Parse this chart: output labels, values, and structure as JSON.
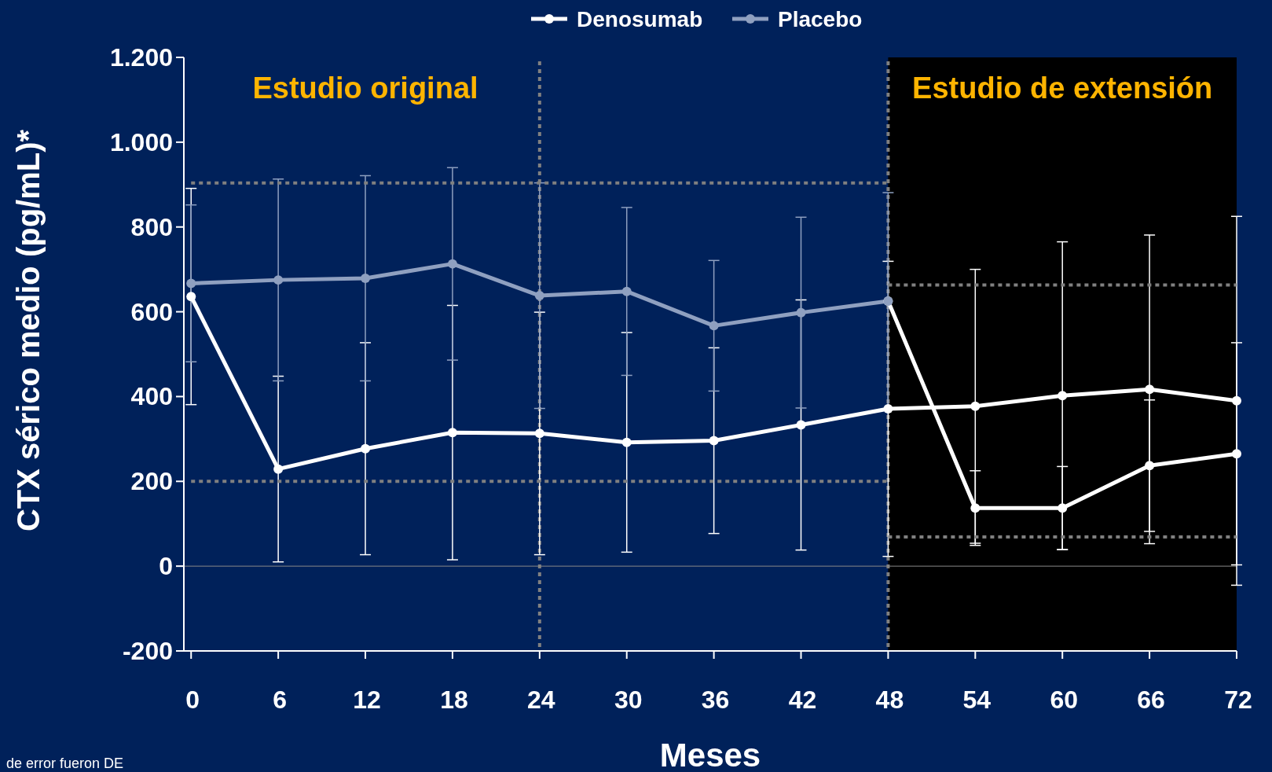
{
  "chart_data": {
    "type": "line",
    "xlabel": "Meses",
    "ylabel": "CTX sérico medio (pg/mL)*",
    "x": [
      0,
      6,
      12,
      18,
      24,
      30,
      36,
      42,
      48,
      54,
      60,
      66,
      72
    ],
    "xlim": [
      -0.5,
      72
    ],
    "xticks": [
      0,
      6,
      12,
      18,
      24,
      30,
      36,
      42,
      48,
      54,
      60,
      66,
      72
    ],
    "ylim": [
      -200,
      1200
    ],
    "yticks": [
      {
        "value": -200,
        "label": "-200"
      },
      0,
      200,
      400,
      600,
      800,
      {
        "value": 1000,
        "label": "1.000"
      },
      {
        "value": 1200,
        "label": "1.200"
      }
    ],
    "legend": "top",
    "marker": "circle",
    "line_style": "solid",
    "grid": false,
    "series": [
      {
        "name": "Denosumab",
        "color": "#ffffff",
        "values": [
          636,
          229,
          277,
          315,
          313,
          292,
          296,
          333,
          371,
          377,
          402,
          417,
          390
        ],
        "errors": [
          255,
          219,
          250,
          300,
          286,
          259,
          219,
          295,
          348,
          323,
          363,
          364,
          435
        ]
      },
      {
        "name": "Placebo",
        "color": "#8fa0c0",
        "x": [
          0,
          6,
          12,
          18,
          24,
          30,
          36,
          42,
          48
        ],
        "values": [
          667,
          675,
          679,
          713,
          638,
          648,
          567,
          598,
          625
        ],
        "errors": [
          185,
          238,
          242,
          227,
          266,
          198,
          154,
          225,
          256
        ]
      },
      {
        "color": "#ffffff",
        "x": [
          48,
          54,
          60,
          66,
          72
        ],
        "values": [
          625,
          137,
          137,
          237,
          265
        ],
        "errors": [
          null,
          88,
          98,
          155,
          262
        ]
      },
      {
        "type": "line",
        "color": "#808080",
        "x": [
          0,
          48
        ],
        "values": [
          904,
          904
        ],
        "line_style": "dotted",
        "marker": "none"
      },
      {
        "type": "line",
        "color": "#808080",
        "x": [
          0,
          48
        ],
        "values": [
          200,
          200
        ],
        "line_style": "dotted",
        "marker": "none"
      },
      {
        "type": "line",
        "color": "#808080",
        "x": [
          48,
          72
        ],
        "values": [
          663,
          663
        ],
        "line_style": "dotted",
        "marker": "none"
      },
      {
        "type": "line",
        "color": "#808080",
        "x": [
          48,
          72
        ],
        "values": [
          69,
          69
        ],
        "line_style": "dotted",
        "marker": "none"
      }
    ],
    "ref_lines": [
      {
        "axis": "x",
        "value": 24,
        "color": "#808080",
        "line_style": "dotted"
      },
      {
        "axis": "x",
        "value": 48,
        "color": "#808080",
        "line_style": "dotted"
      },
      {
        "axis": "y",
        "value": 0,
        "color": "#888888",
        "line_style": "solid"
      }
    ],
    "bands": [
      {
        "axis": "x",
        "from": 48,
        "to": 72,
        "label": "Estudio de extensión",
        "color": "#000000"
      }
    ],
    "annotations": [
      "Estudio original",
      "de error fueron DE"
    ]
  }
}
